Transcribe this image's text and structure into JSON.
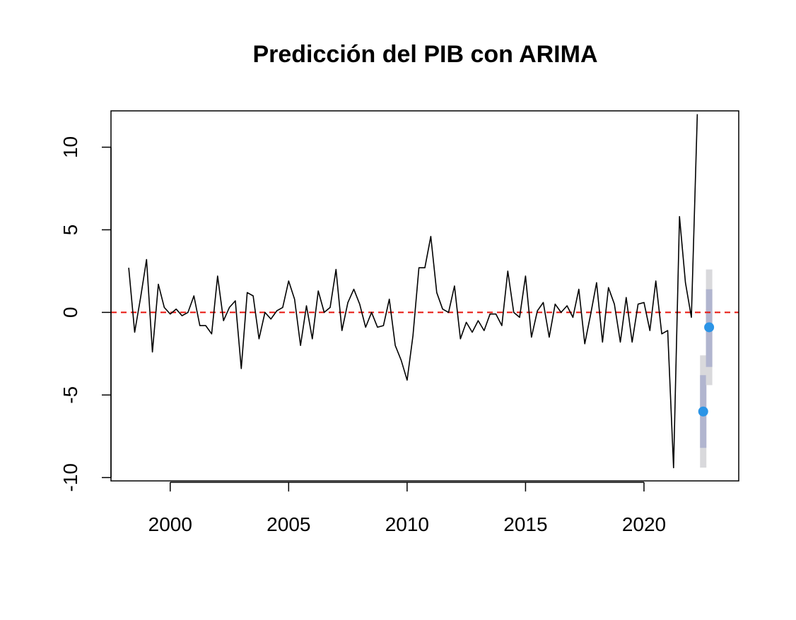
{
  "chart_data": {
    "type": "line",
    "title": "Predicción del PIB con ARIMA",
    "xlabel": "",
    "ylabel": "",
    "xlim": [
      1997.5,
      2024.0
    ],
    "ylim": [
      -10.2,
      12.2
    ],
    "x_ticks": [
      2000,
      2005,
      2010,
      2015,
      2020
    ],
    "x_tick_labels": [
      "2000",
      "2005",
      "2010",
      "2015",
      "2020"
    ],
    "y_ticks": [
      -10,
      -5,
      0,
      5,
      10
    ],
    "y_tick_labels": [
      "-10",
      "-5",
      "0",
      "5",
      "10"
    ],
    "grid": false,
    "reference_line": {
      "y": 0,
      "style": "dashed",
      "color": "#e8140c"
    },
    "series": [
      {
        "x_start": 1998.25,
        "x_step": 0.25,
        "values": [
          2.7,
          -1.2,
          0.9,
          3.2,
          -2.4,
          1.7,
          0.3,
          -0.1,
          0.2,
          -0.2,
          0.0,
          1.0,
          -0.8,
          -0.8,
          -1.3,
          2.2,
          -0.5,
          0.3,
          0.7,
          -3.4,
          1.2,
          1.0,
          -1.6,
          0.0,
          -0.4,
          0.1,
          0.3,
          1.9,
          0.8,
          -2.0,
          0.4,
          -1.6,
          1.3,
          0.0,
          0.3,
          2.6,
          -1.1,
          0.6,
          1.4,
          0.5,
          -0.9,
          0.0,
          -0.9,
          -0.8,
          0.8,
          -2.0,
          -2.9,
          -4.1,
          -1.4,
          2.7,
          2.7,
          4.6,
          1.2,
          0.2,
          0.0,
          1.6,
          -1.6,
          -0.6,
          -1.2,
          -0.5,
          -1.1,
          -0.1,
          -0.1,
          -0.8,
          2.5,
          0.0,
          -0.3,
          2.2,
          -1.5,
          0.1,
          0.6,
          -1.5,
          0.5,
          0.0,
          0.4,
          -0.3,
          1.4,
          -1.9,
          -0.1,
          1.8,
          -1.8,
          1.5,
          0.5,
          -1.8,
          0.9,
          -1.8,
          0.5,
          0.6,
          -1.1,
          1.9,
          -1.3,
          -1.1,
          -9.4,
          5.8,
          1.8,
          -0.3,
          12.0
        ],
        "color": "#000000"
      }
    ],
    "forecast": [
      {
        "x": 2022.5,
        "mean": -6.0,
        "lo80": -8.2,
        "hi80": -3.8,
        "lo95": -9.4,
        "hi95": -2.6
      },
      {
        "x": 2022.75,
        "mean": -0.9,
        "lo80": -3.3,
        "hi80": 1.4,
        "lo95": -4.4,
        "hi95": 2.6
      }
    ],
    "colors": {
      "forecast_point": "#2b94e6",
      "band80": "#b1b5cf",
      "band95": "#d9d9dc",
      "axis": "#000000"
    }
  }
}
